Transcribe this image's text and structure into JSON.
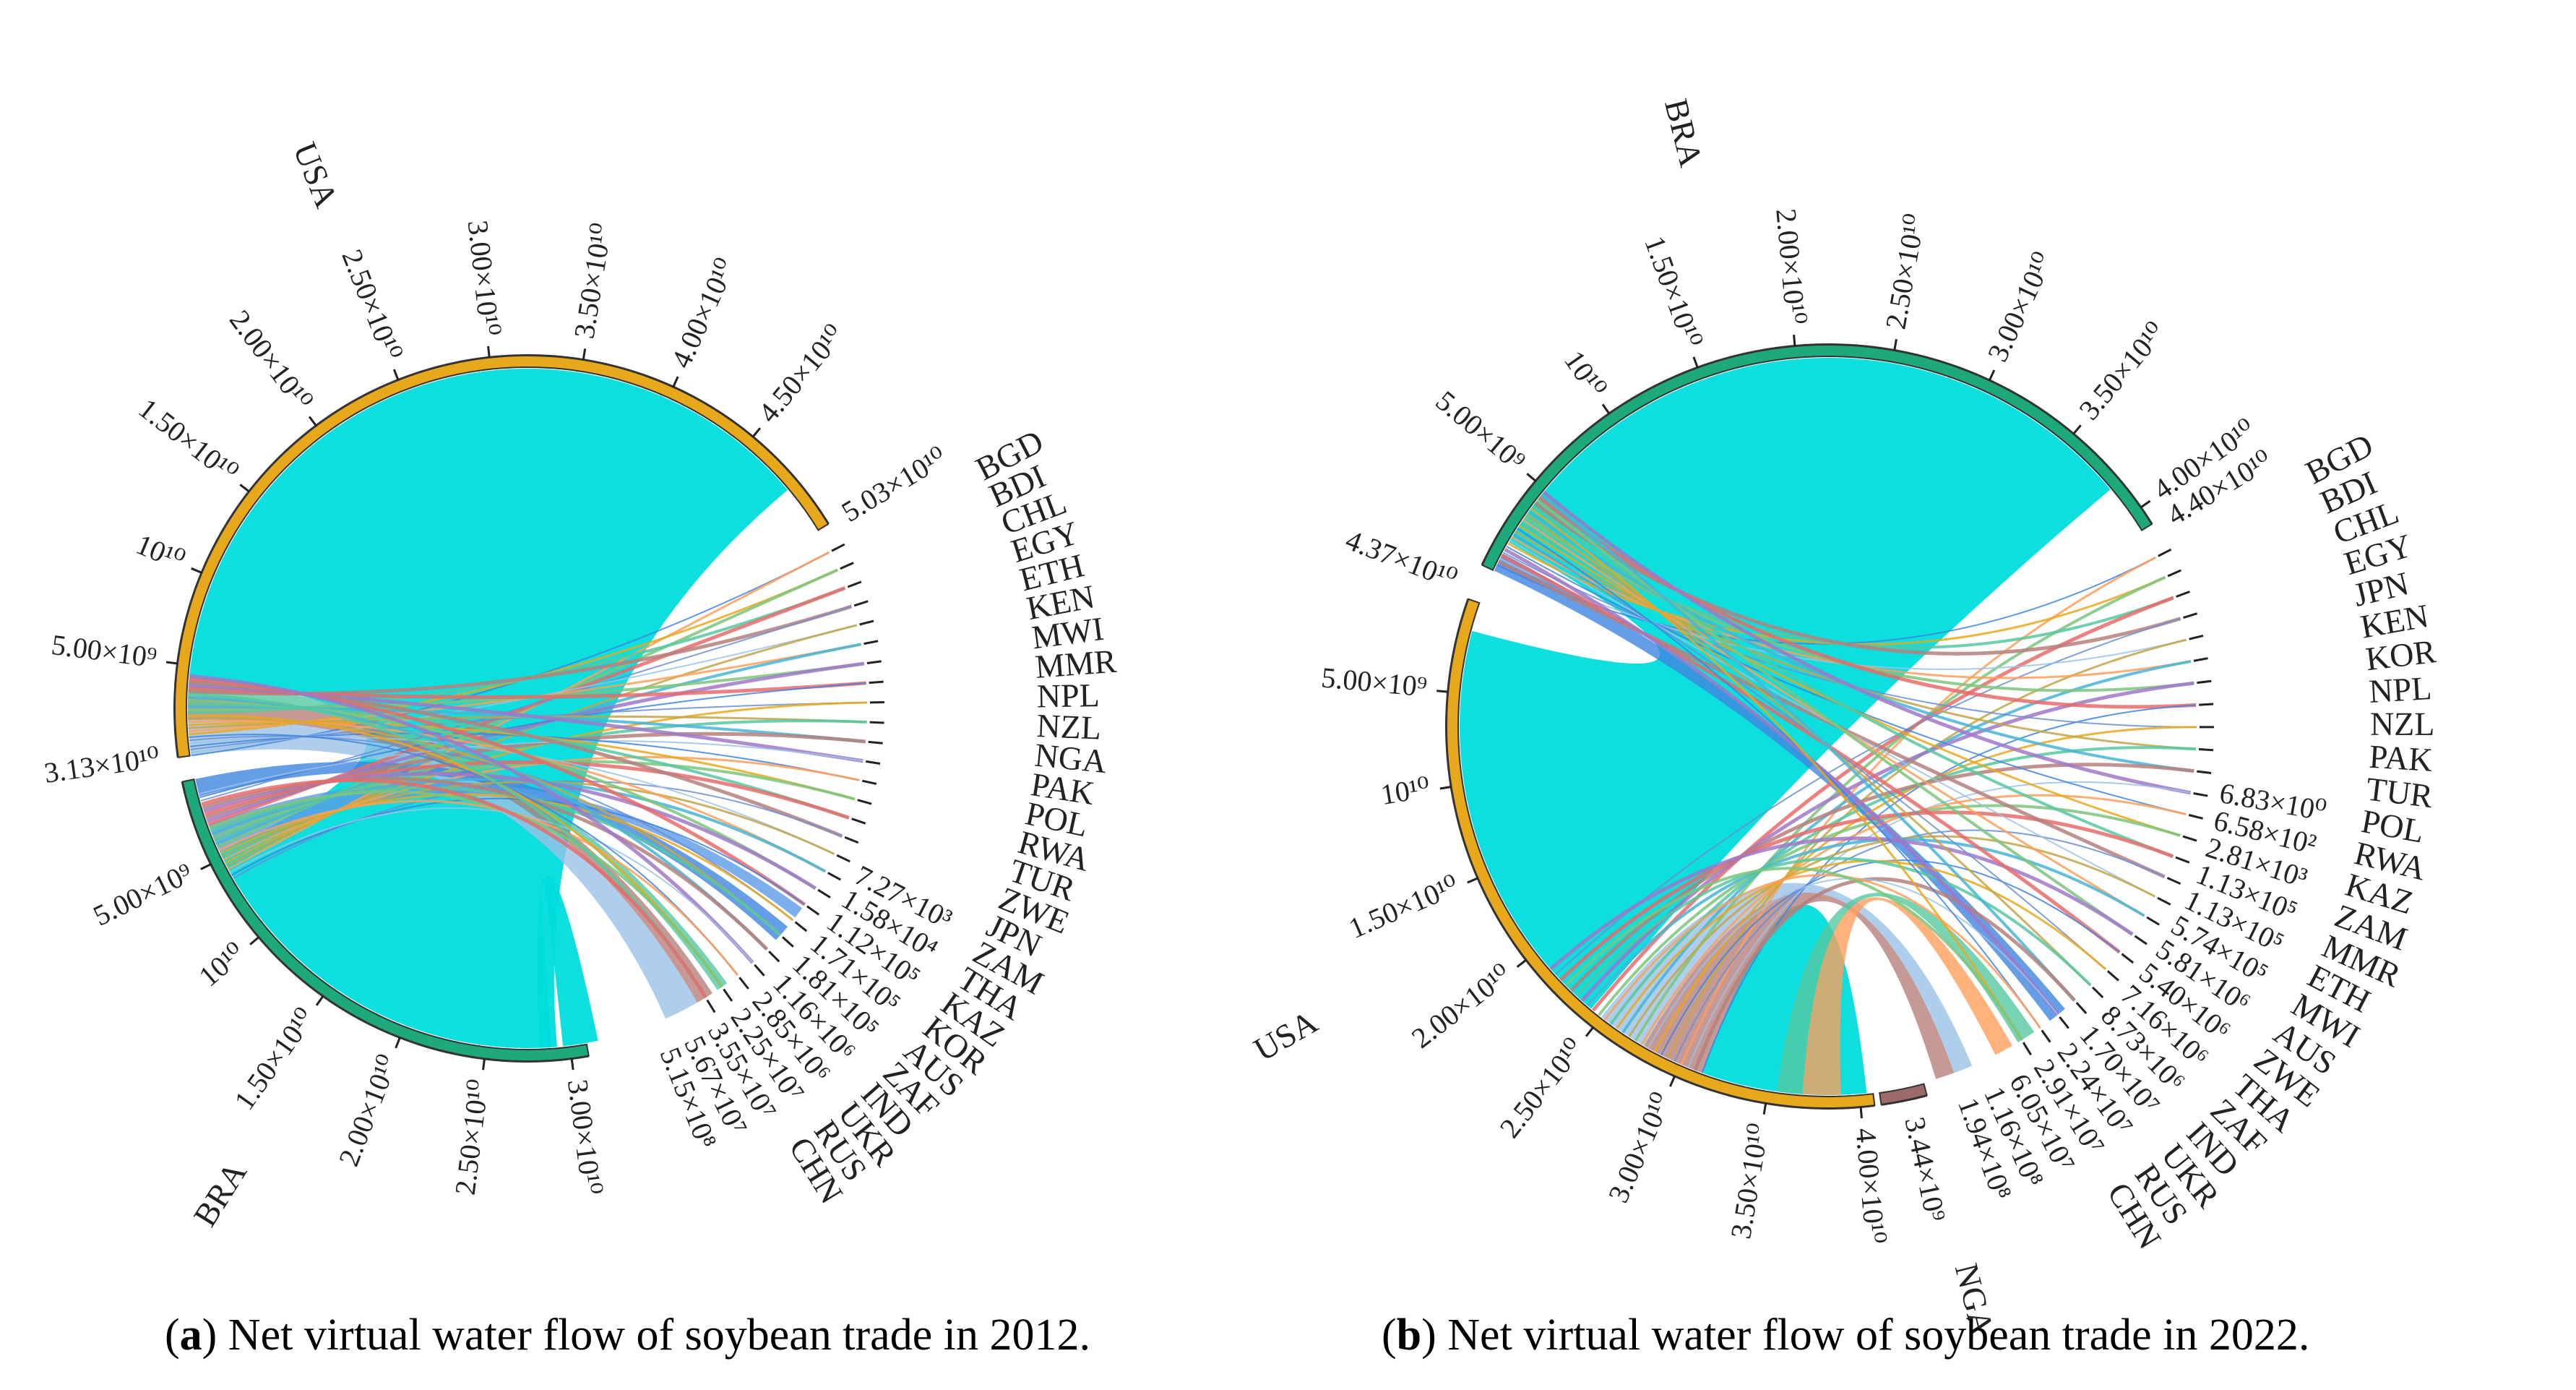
{
  "captions": [
    {
      "letter": "a",
      "text": ") Net virtual water flow of soybean trade in 2012."
    },
    {
      "letter": "b",
      "text": ") Net virtual water flow of soybean trade in 2022."
    }
  ],
  "chart_data": [
    {
      "type": "chord",
      "year": "2012",
      "big_nodes": [
        {
          "name": "USA",
          "total": 50300000000.0,
          "color": "#E8A81C",
          "ticks": [
            "5.00×10⁹",
            "10¹⁰",
            "1.50×10¹⁰",
            "2.00×10¹⁰",
            "2.50×10¹⁰",
            "3.00×10¹⁰",
            "3.50×10¹⁰",
            "4.00×10¹⁰",
            "4.50×10¹⁰"
          ],
          "end_labels": [
            "5.03×10¹⁰"
          ]
        },
        {
          "name": "BRA",
          "total": 31300000000.0,
          "color": "#1EA97C",
          "ticks": [
            "5.00×10⁹",
            "10¹⁰",
            "1.50×10¹⁰",
            "2.00×10¹⁰",
            "2.50×10¹⁰",
            "3.00×10¹⁰"
          ],
          "end_labels": [
            "3.13×10¹⁰"
          ]
        }
      ],
      "value_labels": [
        "7.27×10³",
        "1.58×10⁴",
        "1.12×10⁵",
        "1.71×10⁵",
        "1.81×10⁵",
        "1.16×10⁶",
        "2.85×10⁶",
        "2.25×10⁷",
        "3.55×10⁷",
        "5.67×10⁷",
        "5.15×10⁸"
      ],
      "countries": [
        "BGD",
        "BDI",
        "CHL",
        "EGY",
        "ETH",
        "KEN",
        "MWI",
        "MMR",
        "NPL",
        "NZL",
        "NGA",
        "PAK",
        "POL",
        "RWA",
        "TUR",
        "ZWE",
        "JPN",
        "ZAM",
        "THA",
        "KAZ",
        "KOR",
        "AUS",
        "ZAF",
        "IND",
        "UKR",
        "RUS",
        "CHN"
      ],
      "flows": [
        {
          "from": "USA",
          "to": "CHN",
          "color": "#00DCDC",
          "width": "large"
        },
        {
          "from": "BRA",
          "to": "CHN",
          "color": "#00DCDC",
          "width": "large"
        },
        {
          "from": "USA",
          "to": "RUS",
          "color": "#9BC2E6"
        },
        {
          "from": "USA",
          "to": "UKR",
          "color": "#B5807C"
        },
        {
          "from": "USA",
          "to": "IND",
          "color": "#55C8A0"
        },
        {
          "from": "USA",
          "to": "JPN",
          "color": "#3E84E0"
        },
        {
          "from": "BRA",
          "to": "KOR",
          "color": "#5B9BE6"
        }
      ]
    },
    {
      "type": "chord",
      "year": "2022",
      "big_nodes": [
        {
          "name": "BRA",
          "total": 44000000000.0,
          "color": "#1EA97C",
          "ticks": [
            "5.00×10⁹",
            "10¹⁰",
            "1.50×10¹⁰",
            "2.00×10¹⁰",
            "2.50×10¹⁰",
            "3.00×10¹⁰",
            "3.50×10¹⁰",
            "4.00×10¹⁰"
          ],
          "end_labels": [
            "4.40×10¹⁰"
          ]
        },
        {
          "name": "USA",
          "total": 43700000000.0,
          "color": "#E8A81C",
          "ticks": [
            "5.00×10⁹",
            "10¹⁰",
            "1.50×10¹⁰",
            "2.00×10¹⁰",
            "2.50×10¹⁰",
            "3.00×10¹⁰",
            "3.50×10¹⁰",
            "4.00×10¹⁰"
          ],
          "end_labels": [
            "4.37×10¹⁰"
          ]
        },
        {
          "name": "NGA",
          "total": 3440000000.0,
          "color": "#9B6A6A",
          "ticks": [],
          "end_labels": [
            "3.44×10⁹"
          ]
        }
      ],
      "value_labels": [
        "6.83×10⁰",
        "6.58×10²",
        "2.81×10³",
        "1.13×10⁵",
        "1.13×10⁵",
        "5.74×10⁵",
        "5.81×10⁶",
        "5.40×10⁶",
        "7.16×10⁶",
        "8.73×10⁶",
        "1.70×10⁷",
        "2.24×10⁷",
        "2.91×10⁷",
        "6.05×10⁷",
        "1.16×10⁸",
        "1.94×10⁸"
      ],
      "countries": [
        "BGD",
        "BDI",
        "CHL",
        "EGY",
        "JPN",
        "KEN",
        "KOR",
        "NPL",
        "NZL",
        "PAK",
        "TUR",
        "POL",
        "RWA",
        "KAZ",
        "ZAM",
        "MMR",
        "ETH",
        "MWI",
        "AUS",
        "ZWE",
        "THA",
        "ZAF",
        "IND",
        "UKR",
        "RUS",
        "CHN"
      ],
      "flows": [
        {
          "from": "BRA",
          "to": "CHN",
          "color": "#00DCDC",
          "width": "large"
        },
        {
          "from": "USA",
          "to": "CHN",
          "color": "#00DCDC",
          "width": "large"
        },
        {
          "from": "USA",
          "to": "IND",
          "color": "#B5807C"
        },
        {
          "from": "USA",
          "to": "RUS",
          "color": "#9BC2E6"
        },
        {
          "from": "USA",
          "to": "UKR",
          "color": "#FF9F5B"
        },
        {
          "from": "USA",
          "to": "ZAF",
          "color": "#55C8A0"
        },
        {
          "from": "BRA",
          "to": "KOR",
          "color": "#3E84E0"
        }
      ]
    }
  ]
}
